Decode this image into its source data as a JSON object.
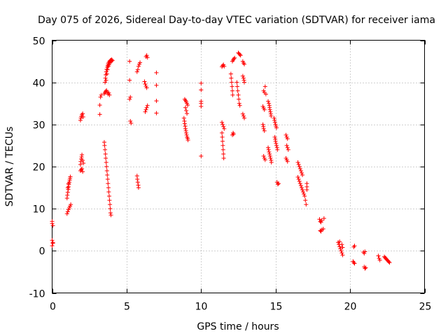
{
  "chart_data": {
    "type": "scatter",
    "title": "Day 075 of 2026, Sidereal Day-to-day VTEC variation (SDTVAR) for receiver iama",
    "xlabel": "GPS time / hours",
    "ylabel": "SDTVAR / TECUs",
    "xlim": [
      0,
      25
    ],
    "ylim": [
      -10,
      50
    ],
    "xticks": [
      0,
      5,
      10,
      15,
      20,
      25
    ],
    "yticks": [
      -10,
      0,
      10,
      20,
      30,
      40,
      50
    ],
    "xtick_labels": [
      "0",
      "5",
      "10",
      "15",
      "20",
      "25"
    ],
    "ytick_labels": [
      "-10",
      "0",
      "10",
      "20",
      "30",
      "40",
      "50"
    ],
    "grid": true,
    "marker": "+",
    "color": "#ff0000",
    "series": [
      {
        "name": "SDTVAR",
        "points": [
          [
            0.0,
            7.0
          ],
          [
            0.0,
            6.5
          ],
          [
            0.05,
            6.0
          ],
          [
            0.0,
            2.5
          ],
          [
            0.05,
            2.0
          ],
          [
            0.0,
            1.2
          ],
          [
            0.05,
            1.8
          ],
          [
            1.0,
            8.8
          ],
          [
            1.05,
            9.3
          ],
          [
            1.1,
            9.8
          ],
          [
            1.15,
            10.2
          ],
          [
            1.2,
            10.6
          ],
          [
            1.25,
            11.0
          ],
          [
            1.0,
            12.5
          ],
          [
            1.02,
            13.2
          ],
          [
            1.05,
            13.9
          ],
          [
            1.08,
            14.6
          ],
          [
            1.1,
            15.2
          ],
          [
            1.12,
            15.8
          ],
          [
            1.15,
            16.3
          ],
          [
            1.18,
            16.8
          ],
          [
            1.2,
            17.2
          ],
          [
            1.22,
            17.6
          ],
          [
            1.05,
            15.0
          ],
          [
            1.1,
            16.0
          ],
          [
            1.9,
            19.0
          ],
          [
            1.95,
            19.3
          ],
          [
            2.0,
            19.5
          ],
          [
            2.05,
            18.8
          ],
          [
            1.9,
            20.5
          ],
          [
            1.92,
            21.2
          ],
          [
            1.95,
            21.8
          ],
          [
            1.98,
            22.3
          ],
          [
            2.0,
            22.8
          ],
          [
            2.05,
            21.5
          ],
          [
            2.1,
            20.8
          ],
          [
            1.9,
            31.0
          ],
          [
            1.93,
            31.5
          ],
          [
            1.96,
            31.9
          ],
          [
            2.0,
            32.3
          ],
          [
            2.05,
            32.6
          ],
          [
            2.08,
            31.8
          ],
          [
            3.2,
            32.4
          ],
          [
            3.2,
            34.6
          ],
          [
            3.25,
            36.5
          ],
          [
            3.3,
            37.0
          ],
          [
            3.5,
            37.3
          ],
          [
            3.55,
            37.6
          ],
          [
            3.6,
            37.9
          ],
          [
            3.65,
            38.1
          ],
          [
            3.7,
            37.7
          ],
          [
            3.75,
            37.2
          ],
          [
            3.8,
            37.5
          ],
          [
            3.85,
            37.0
          ],
          [
            3.55,
            40.0
          ],
          [
            3.58,
            41.0
          ],
          [
            3.6,
            41.8
          ],
          [
            3.63,
            42.5
          ],
          [
            3.66,
            43.1
          ],
          [
            3.7,
            43.6
          ],
          [
            3.73,
            44.0
          ],
          [
            3.76,
            44.4
          ],
          [
            3.8,
            44.7
          ],
          [
            3.85,
            45.0
          ],
          [
            3.9,
            45.2
          ],
          [
            3.95,
            45.3
          ],
          [
            4.0,
            45.4
          ],
          [
            4.05,
            45.2
          ],
          [
            3.62,
            40.5
          ],
          [
            3.68,
            42.0
          ],
          [
            3.72,
            43.0
          ],
          [
            3.78,
            43.8
          ],
          [
            3.82,
            44.2
          ],
          [
            3.88,
            44.6
          ],
          [
            3.92,
            44.9
          ],
          [
            3.98,
            45.0
          ],
          [
            3.5,
            25.8
          ],
          [
            3.52,
            25.0
          ],
          [
            3.55,
            24.0
          ],
          [
            3.58,
            23.0
          ],
          [
            3.6,
            22.0
          ],
          [
            3.63,
            21.0
          ],
          [
            3.65,
            20.0
          ],
          [
            3.68,
            19.0
          ],
          [
            3.7,
            18.0
          ],
          [
            3.73,
            17.0
          ],
          [
            3.75,
            16.0
          ],
          [
            3.78,
            15.0
          ],
          [
            3.8,
            14.0
          ],
          [
            3.83,
            13.0
          ],
          [
            3.85,
            12.0
          ],
          [
            3.88,
            11.0
          ],
          [
            3.9,
            10.0
          ],
          [
            3.92,
            9.0
          ],
          [
            3.95,
            8.5
          ],
          [
            5.2,
            45.0
          ],
          [
            5.2,
            40.5
          ],
          [
            5.25,
            36.5
          ],
          [
            5.2,
            36.0
          ],
          [
            5.25,
            30.8
          ],
          [
            5.3,
            30.3
          ],
          [
            5.7,
            42.5
          ],
          [
            5.75,
            43.0
          ],
          [
            5.8,
            43.8
          ],
          [
            5.85,
            44.3
          ],
          [
            5.9,
            44.7
          ],
          [
            5.7,
            17.8
          ],
          [
            5.72,
            17.0
          ],
          [
            5.75,
            16.3
          ],
          [
            5.78,
            15.6
          ],
          [
            5.8,
            15.0
          ],
          [
            6.3,
            46.1
          ],
          [
            6.35,
            46.4
          ],
          [
            6.4,
            45.9
          ],
          [
            6.2,
            40.2
          ],
          [
            6.25,
            39.6
          ],
          [
            6.3,
            39.1
          ],
          [
            6.35,
            38.7
          ],
          [
            6.25,
            33.0
          ],
          [
            6.3,
            33.5
          ],
          [
            6.35,
            34.0
          ],
          [
            6.4,
            34.5
          ],
          [
            7.0,
            42.3
          ],
          [
            7.0,
            39.3
          ],
          [
            7.0,
            35.6
          ],
          [
            7.0,
            32.7
          ],
          [
            8.9,
            36.0
          ],
          [
            8.95,
            35.7
          ],
          [
            9.0,
            35.4
          ],
          [
            9.05,
            35.0
          ],
          [
            9.1,
            34.6
          ],
          [
            8.95,
            34.0
          ],
          [
            9.0,
            33.3
          ],
          [
            9.05,
            32.6
          ],
          [
            8.85,
            31.5
          ],
          [
            8.88,
            30.8
          ],
          [
            8.9,
            30.2
          ],
          [
            8.93,
            29.6
          ],
          [
            8.95,
            29.0
          ],
          [
            8.98,
            28.5
          ],
          [
            9.0,
            28.0
          ],
          [
            9.03,
            27.5
          ],
          [
            9.06,
            27.0
          ],
          [
            9.1,
            26.7
          ],
          [
            9.12,
            26.3
          ],
          [
            10.0,
            39.8
          ],
          [
            10.0,
            38.2
          ],
          [
            10.0,
            35.5
          ],
          [
            10.0,
            35.0
          ],
          [
            10.0,
            34.3
          ],
          [
            10.0,
            22.5
          ],
          [
            11.4,
            43.7
          ],
          [
            11.45,
            44.0
          ],
          [
            11.5,
            44.2
          ],
          [
            11.55,
            43.8
          ],
          [
            11.4,
            30.5
          ],
          [
            11.45,
            30.0
          ],
          [
            11.5,
            29.5
          ],
          [
            11.55,
            29.0
          ],
          [
            11.4,
            28.0
          ],
          [
            11.42,
            27.0
          ],
          [
            11.44,
            26.0
          ],
          [
            11.46,
            25.0
          ],
          [
            11.48,
            24.0
          ],
          [
            11.5,
            23.0
          ],
          [
            11.52,
            22.0
          ],
          [
            12.1,
            45.0
          ],
          [
            12.15,
            45.3
          ],
          [
            12.2,
            45.6
          ],
          [
            12.25,
            45.8
          ],
          [
            12.0,
            42.0
          ],
          [
            12.02,
            41.0
          ],
          [
            12.05,
            40.0
          ],
          [
            12.08,
            39.0
          ],
          [
            12.1,
            38.0
          ],
          [
            12.12,
            37.0
          ],
          [
            12.1,
            27.5
          ],
          [
            12.15,
            28.0
          ],
          [
            12.18,
            27.7
          ],
          [
            12.5,
            47.0
          ],
          [
            12.55,
            46.8
          ],
          [
            12.6,
            46.6
          ],
          [
            12.65,
            46.4
          ],
          [
            12.4,
            40.0
          ],
          [
            12.43,
            39.0
          ],
          [
            12.46,
            38.0
          ],
          [
            12.5,
            37.0
          ],
          [
            12.53,
            36.0
          ],
          [
            12.56,
            35.0
          ],
          [
            12.6,
            34.5
          ],
          [
            12.8,
            45.0
          ],
          [
            12.85,
            44.6
          ],
          [
            12.9,
            44.3
          ],
          [
            12.8,
            41.5
          ],
          [
            12.85,
            41.0
          ],
          [
            12.88,
            40.5
          ],
          [
            12.9,
            40.0
          ],
          [
            12.8,
            32.5
          ],
          [
            12.85,
            32.0
          ],
          [
            12.9,
            31.5
          ],
          [
            14.2,
            38.0
          ],
          [
            14.25,
            37.6
          ],
          [
            14.3,
            39.0
          ],
          [
            14.35,
            37.2
          ],
          [
            14.15,
            34.3
          ],
          [
            14.2,
            33.9
          ],
          [
            14.25,
            33.5
          ],
          [
            14.15,
            30.0
          ],
          [
            14.18,
            29.5
          ],
          [
            14.2,
            29.0
          ],
          [
            14.25,
            28.5
          ],
          [
            14.2,
            22.5
          ],
          [
            14.25,
            22.0
          ],
          [
            14.3,
            21.6
          ],
          [
            14.5,
            35.5
          ],
          [
            14.55,
            35.0
          ],
          [
            14.58,
            34.5
          ],
          [
            14.6,
            34.0
          ],
          [
            14.62,
            33.5
          ],
          [
            14.65,
            33.0
          ],
          [
            14.68,
            32.5
          ],
          [
            14.7,
            32.0
          ],
          [
            14.5,
            24.5
          ],
          [
            14.53,
            24.0
          ],
          [
            14.56,
            23.5
          ],
          [
            14.6,
            23.0
          ],
          [
            14.63,
            22.5
          ],
          [
            14.66,
            22.0
          ],
          [
            14.7,
            21.5
          ],
          [
            14.72,
            21.0
          ],
          [
            14.9,
            31.5
          ],
          [
            14.93,
            31.0
          ],
          [
            14.96,
            30.5
          ],
          [
            15.0,
            30.0
          ],
          [
            15.03,
            29.6
          ],
          [
            15.06,
            29.2
          ],
          [
            14.95,
            27.0
          ],
          [
            14.98,
            26.5
          ],
          [
            15.0,
            26.0
          ],
          [
            15.03,
            25.5
          ],
          [
            15.06,
            25.0
          ],
          [
            15.1,
            24.5
          ],
          [
            15.12,
            24.0
          ],
          [
            15.1,
            16.3
          ],
          [
            15.15,
            15.8
          ],
          [
            15.2,
            16.0
          ],
          [
            15.7,
            27.5
          ],
          [
            15.75,
            27.0
          ],
          [
            15.8,
            26.6
          ],
          [
            15.75,
            25.0
          ],
          [
            15.8,
            24.5
          ],
          [
            15.85,
            24.0
          ],
          [
            15.7,
            22.0
          ],
          [
            15.75,
            21.6
          ],
          [
            15.8,
            21.2
          ],
          [
            16.5,
            21.0
          ],
          [
            16.55,
            20.5
          ],
          [
            16.6,
            20.0
          ],
          [
            16.65,
            19.5
          ],
          [
            16.7,
            19.0
          ],
          [
            16.75,
            18.5
          ],
          [
            16.8,
            18.0
          ],
          [
            16.5,
            17.5
          ],
          [
            16.55,
            17.0
          ],
          [
            16.6,
            16.5
          ],
          [
            16.65,
            16.0
          ],
          [
            16.7,
            15.5
          ],
          [
            16.75,
            15.0
          ],
          [
            16.8,
            14.5
          ],
          [
            16.85,
            14.0
          ],
          [
            16.9,
            13.5
          ],
          [
            16.95,
            13.0
          ],
          [
            17.0,
            12.0
          ],
          [
            17.05,
            11.0
          ],
          [
            17.1,
            16.0
          ],
          [
            17.1,
            15.2
          ],
          [
            17.1,
            14.5
          ],
          [
            17.95,
            7.5
          ],
          [
            18.0,
            7.0
          ],
          [
            18.05,
            6.8
          ],
          [
            18.1,
            7.2
          ],
          [
            18.25,
            7.7
          ],
          [
            18.0,
            4.8
          ],
          [
            18.05,
            4.6
          ],
          [
            18.1,
            5.0
          ],
          [
            18.2,
            5.2
          ],
          [
            19.2,
            2.0
          ],
          [
            19.25,
            1.5
          ],
          [
            19.3,
            1.0
          ],
          [
            19.35,
            0.5
          ],
          [
            19.4,
            0.0
          ],
          [
            19.45,
            -0.5
          ],
          [
            19.5,
            -1.0
          ],
          [
            19.3,
            2.2
          ],
          [
            19.45,
            1.5
          ],
          [
            19.5,
            0.8
          ],
          [
            20.2,
            -2.5
          ],
          [
            20.25,
            -2.8
          ],
          [
            20.3,
            -3.0
          ],
          [
            20.3,
            1.2
          ],
          [
            20.25,
            0.9
          ],
          [
            20.9,
            -0.3
          ],
          [
            20.95,
            -0.6
          ],
          [
            21.0,
            -0.2
          ],
          [
            20.95,
            -3.8
          ],
          [
            21.0,
            -4.2
          ],
          [
            21.05,
            -4.0
          ],
          [
            21.9,
            -1.2
          ],
          [
            21.95,
            -1.8
          ],
          [
            22.0,
            -2.2
          ],
          [
            22.3,
            -1.4
          ],
          [
            22.35,
            -1.6
          ],
          [
            22.4,
            -1.8
          ],
          [
            22.45,
            -2.0
          ],
          [
            22.5,
            -2.2
          ],
          [
            22.55,
            -2.4
          ],
          [
            22.6,
            -2.6
          ],
          [
            22.65,
            -2.8
          ]
        ]
      }
    ]
  }
}
